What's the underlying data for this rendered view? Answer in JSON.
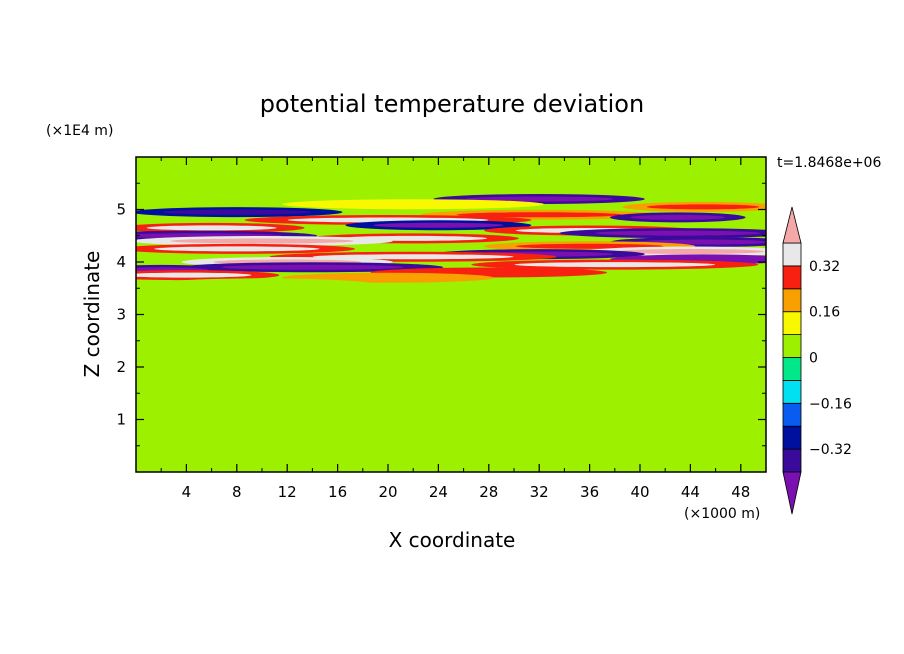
{
  "chart_data": {
    "type": "heatmap",
    "title": "potential temperature deviation",
    "xlabel": "X coordinate",
    "ylabel": "Z coordinate",
    "x_unit": "(×1000 m)",
    "y_unit": "(×1E4 m)",
    "time_label": "t=1.8468e+06",
    "xlim": [
      0,
      50
    ],
    "ylim": [
      0,
      6
    ],
    "x_ticks": [
      4,
      8,
      12,
      16,
      20,
      24,
      28,
      32,
      36,
      40,
      44,
      48
    ],
    "y_ticks": [
      1,
      2,
      3,
      4,
      5
    ],
    "colorbar": {
      "levels": [
        -0.4,
        -0.32,
        -0.24,
        -0.16,
        -0.08,
        0,
        0.08,
        0.16,
        0.24,
        0.32,
        0.4
      ],
      "labels": [
        "0.32",
        "0.16",
        "0",
        "−0.16",
        "−0.32"
      ],
      "label_values": [
        0.32,
        0.16,
        0,
        -0.16,
        -0.32
      ],
      "colors": [
        "#7a10b0",
        "#3a0a9a",
        "#00109e",
        "#0a5cf0",
        "#00e0f0",
        "#00e88a",
        "#9cf000",
        "#f8f800",
        "#f8a000",
        "#f82010",
        "#e8e8e8",
        "#f4a8a8"
      ],
      "extend": "both"
    },
    "bands": [
      {
        "z": 5.2,
        "x": 32,
        "w": 12,
        "v": -0.36
      },
      {
        "z": 5.1,
        "x": 22,
        "w": 16,
        "v": 0.12
      },
      {
        "z": 5.05,
        "x": 45,
        "w": 8,
        "v": 0.22
      },
      {
        "z": 4.95,
        "x": 8,
        "w": 12,
        "v": -0.3
      },
      {
        "z": 4.9,
        "x": 32,
        "w": 14,
        "v": 0.2
      },
      {
        "z": 4.85,
        "x": 43,
        "w": 6,
        "v": -0.34
      },
      {
        "z": 4.8,
        "x": 20,
        "w": 18,
        "v": 0.28
      },
      {
        "z": 4.7,
        "x": 24,
        "w": 10,
        "v": -0.32
      },
      {
        "z": 4.65,
        "x": 6,
        "w": 10,
        "v": 0.3
      },
      {
        "z": 4.6,
        "x": 36,
        "w": 12,
        "v": 0.25
      },
      {
        "z": 4.55,
        "x": 43,
        "w": 14,
        "v": -0.38
      },
      {
        "z": 4.5,
        "x": 5,
        "w": 14,
        "v": -0.4
      },
      {
        "z": 4.45,
        "x": 22,
        "w": 12,
        "v": 0.3
      },
      {
        "z": 4.4,
        "x": 10,
        "w": 16,
        "v": 0.34
      },
      {
        "z": 4.38,
        "x": 45,
        "w": 10,
        "v": -0.34
      },
      {
        "z": 4.3,
        "x": 36,
        "w": 12,
        "v": 0.22
      },
      {
        "z": 4.25,
        "x": 8,
        "w": 14,
        "v": 0.26
      },
      {
        "z": 4.2,
        "x": 44,
        "w": 12,
        "v": 0.36
      },
      {
        "z": 4.15,
        "x": 32,
        "w": 12,
        "v": -0.36
      },
      {
        "z": 4.1,
        "x": 22,
        "w": 18,
        "v": 0.3
      },
      {
        "z": 4.05,
        "x": 45,
        "w": 10,
        "v": -0.42
      },
      {
        "z": 4.0,
        "x": 12,
        "w": 12,
        "v": 0.32
      },
      {
        "z": 3.95,
        "x": 38,
        "w": 18,
        "v": 0.3
      },
      {
        "z": 3.9,
        "x": 14,
        "w": 16,
        "v": -0.38
      },
      {
        "z": 3.85,
        "x": 2,
        "w": 6,
        "v": -0.34
      },
      {
        "z": 3.8,
        "x": 28,
        "w": 14,
        "v": 0.24
      },
      {
        "z": 3.75,
        "x": 4,
        "w": 10,
        "v": 0.3
      },
      {
        "z": 3.7,
        "x": 20,
        "w": 12,
        "v": 0.16
      },
      {
        "z": 3.5,
        "x": 10,
        "w": 16,
        "v": 0.04
      },
      {
        "z": 3.3,
        "x": 30,
        "w": 20,
        "v": 0.05
      },
      {
        "z": 3.0,
        "x": 14,
        "w": 18,
        "v": 0.04
      },
      {
        "z": 2.7,
        "x": 38,
        "w": 16,
        "v": 0.05
      },
      {
        "z": 2.4,
        "x": 10,
        "w": 14,
        "v": 0.04
      },
      {
        "z": 2.1,
        "x": 30,
        "w": 20,
        "v": 0.05
      },
      {
        "z": 1.8,
        "x": 6,
        "w": 12,
        "v": 0.04
      },
      {
        "z": 1.5,
        "x": 24,
        "w": 18,
        "v": 0.05
      },
      {
        "z": 1.2,
        "x": 40,
        "w": 14,
        "v": 0.04
      },
      {
        "z": 0.9,
        "x": 16,
        "w": 16,
        "v": 0.05
      },
      {
        "z": 0.6,
        "x": 36,
        "w": 20,
        "v": 0.04
      },
      {
        "z": 0.3,
        "x": 10,
        "w": 18,
        "v": 0.05
      }
    ]
  }
}
